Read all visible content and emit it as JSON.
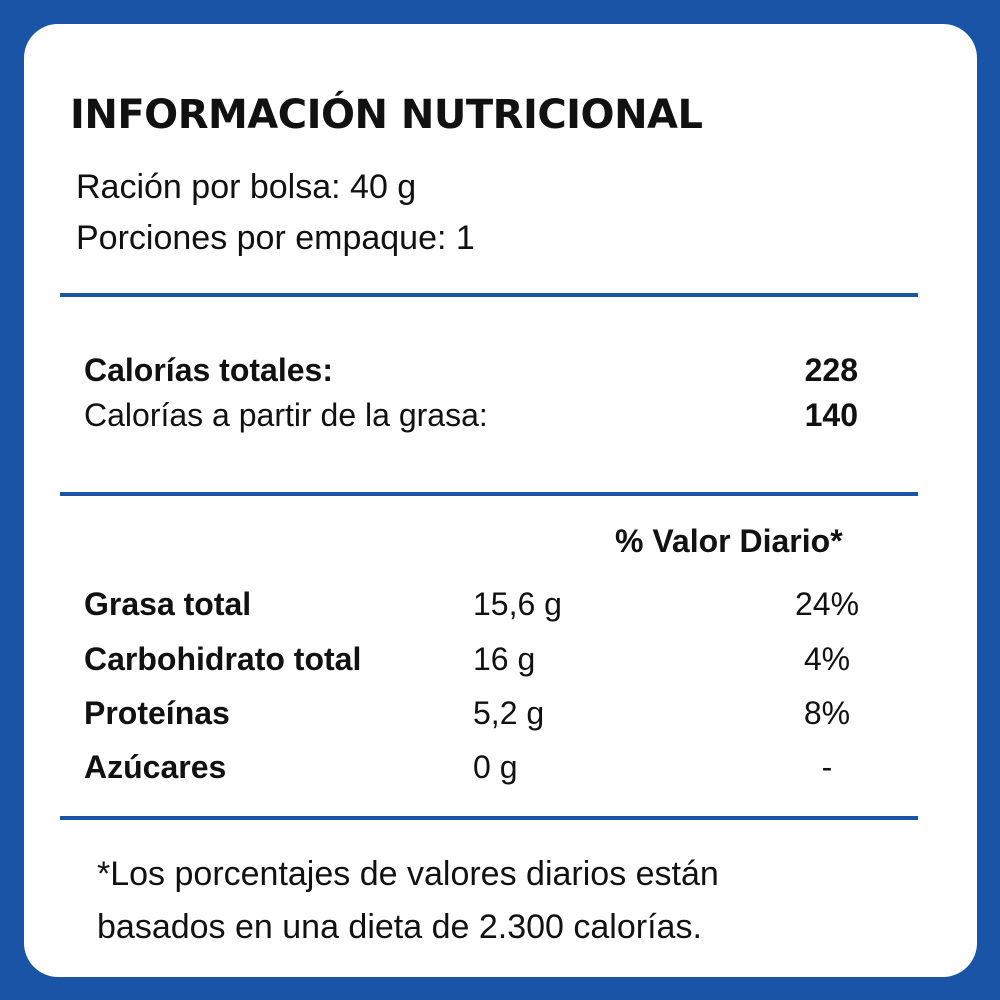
{
  "label": {
    "title": "INFORMACIÓN NUTRICIONAL",
    "serving_size": "Ración por bolsa: 40 g",
    "servings_per_package": "Porciones por empaque: 1",
    "calories": {
      "total_label": "Calorías totales:",
      "total_value": "228",
      "from_fat_label": "Calorías a partir de la grasa:",
      "from_fat_value": "140"
    },
    "daily_value_header": "% Valor Diario*",
    "nutrients": [
      {
        "name": "Grasa total",
        "amount": "15,6 g",
        "daily_value": "24%"
      },
      {
        "name": "Carbohidrato total",
        "amount": "16 g",
        "daily_value": "4%"
      },
      {
        "name": "Proteínas",
        "amount": "5,2 g",
        "daily_value": "8%"
      },
      {
        "name": "Azúcares",
        "amount": "0 g",
        "daily_value": "-"
      }
    ],
    "footnote_lines": [
      "*Los porcentajes de valores diarios están",
      "basados en una dieta de 2.300 calorías."
    ]
  },
  "colors": {
    "border_blue": "#1a54a6",
    "background": "#ffffff",
    "text": "#111111"
  }
}
